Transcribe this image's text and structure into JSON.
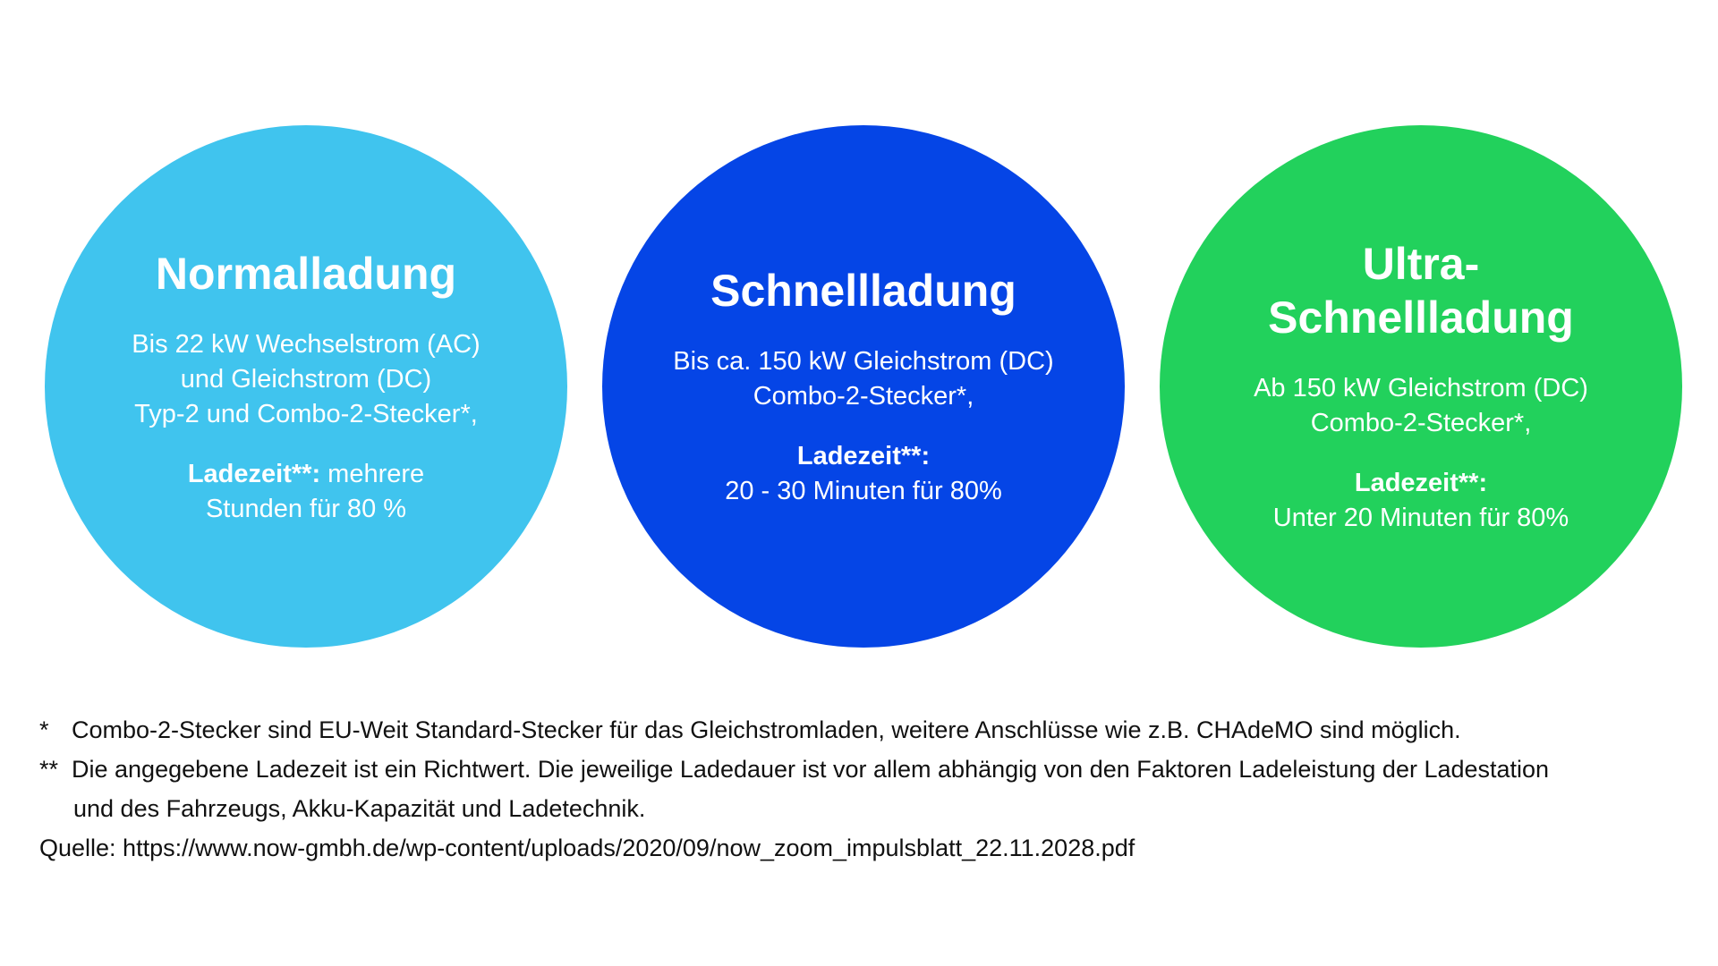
{
  "colors": {
    "normal": "#40C4EE",
    "schnell": "#0545E6",
    "ultra": "#22D15C",
    "text": "#FFFFFF",
    "footnote_text": "#111111",
    "background": "#FFFFFF"
  },
  "cards": [
    {
      "title_lines": [
        "Normalladung"
      ],
      "desc_lines": [
        "Bis 22 kW Wechselstrom (AC)",
        "und Gleichstrom (DC)",
        "Typ-2 und Combo-2-Stecker*,"
      ],
      "time_label": "Ladezeit**:",
      "time_inline": " mehrere",
      "time_lines": [
        "Stunden für 80 %"
      ]
    },
    {
      "title_lines": [
        "Schnellladung"
      ],
      "desc_lines": [
        "Bis ca. 150 kW Gleichstrom (DC)",
        "Combo-2-Stecker*,"
      ],
      "time_label": "Ladezeit**:",
      "time_inline": "",
      "time_lines": [
        "20 - 30 Minuten für 80%"
      ]
    },
    {
      "title_lines": [
        "Ultra-",
        "Schnellladung"
      ],
      "desc_lines": [
        "Ab 150 kW Gleichstrom (DC)",
        "Combo-2-Stecker*,"
      ],
      "time_label": "Ladezeit**:",
      "time_inline": "",
      "time_lines": [
        "Unter 20 Minuten für 80%"
      ]
    }
  ],
  "footnotes": {
    "note1_mark": "*",
    "note1_text": "Combo-2-Stecker sind EU-Weit Standard-Stecker für das Gleichstromladen, weitere Anschlüsse wie z.B. CHAdeMO sind möglich.",
    "note2_mark": "**",
    "note2_line1": "Die angegebene Ladezeit ist ein Richtwert. Die jeweilige Ladedauer ist vor allem abhängig von den Faktoren Ladeleistung der Ladestation",
    "note2_line2": "und des Fahrzeugs, Akku-Kapazität und Ladetechnik.",
    "source": "Quelle: https://www.now-gmbh.de/wp-content/uploads/2020/09/now_zoom_impulsblatt_22.11.2028.pdf"
  }
}
